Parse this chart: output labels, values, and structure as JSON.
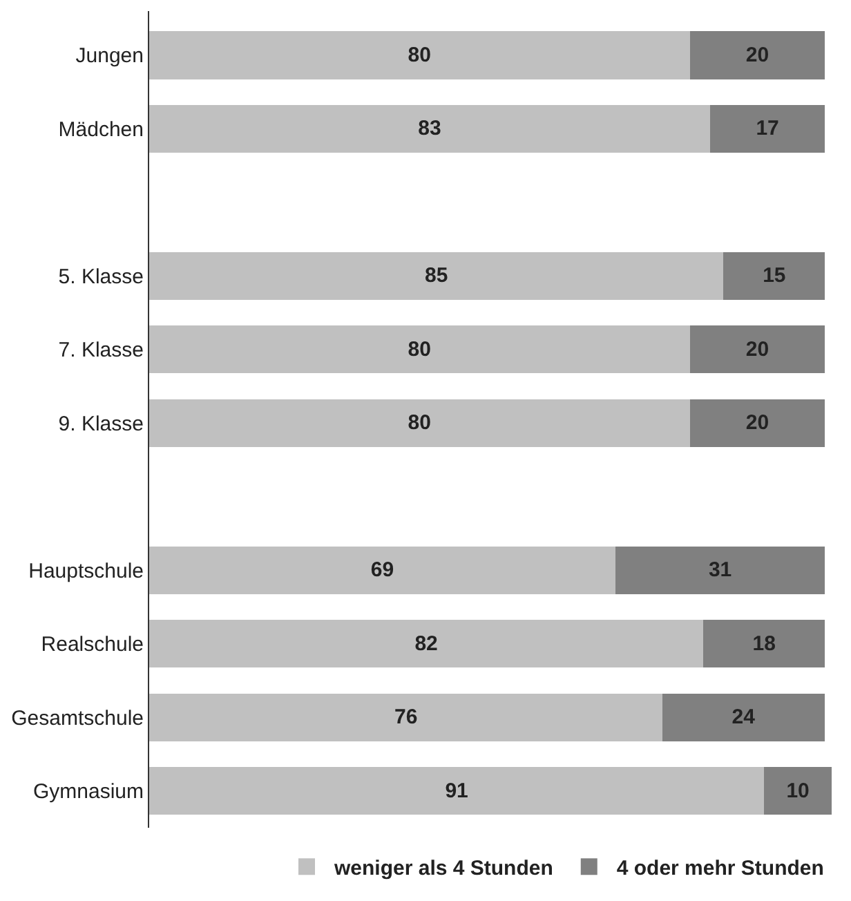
{
  "chart_data": {
    "type": "bar",
    "orientation": "horizontal",
    "stacked": true,
    "data_labels": true,
    "legend": "bottom",
    "xlim": [
      0,
      101
    ],
    "categories": [
      "Jungen",
      "Mädchen",
      null,
      "5. Klasse",
      "7. Klasse",
      "9. Klasse",
      null,
      "Hauptschule",
      "Realschule",
      "Gesamtschule",
      "Gymnasium"
    ],
    "series": [
      {
        "name": "weniger als 4 Stunden",
        "color": "#c0c0c0",
        "values": [
          80,
          83,
          null,
          85,
          80,
          80,
          null,
          69,
          82,
          76,
          91
        ]
      },
      {
        "name": "4 oder mehr Stunden",
        "color": "#808080",
        "values": [
          20,
          17,
          null,
          15,
          20,
          20,
          null,
          31,
          18,
          24,
          10
        ]
      }
    ]
  }
}
